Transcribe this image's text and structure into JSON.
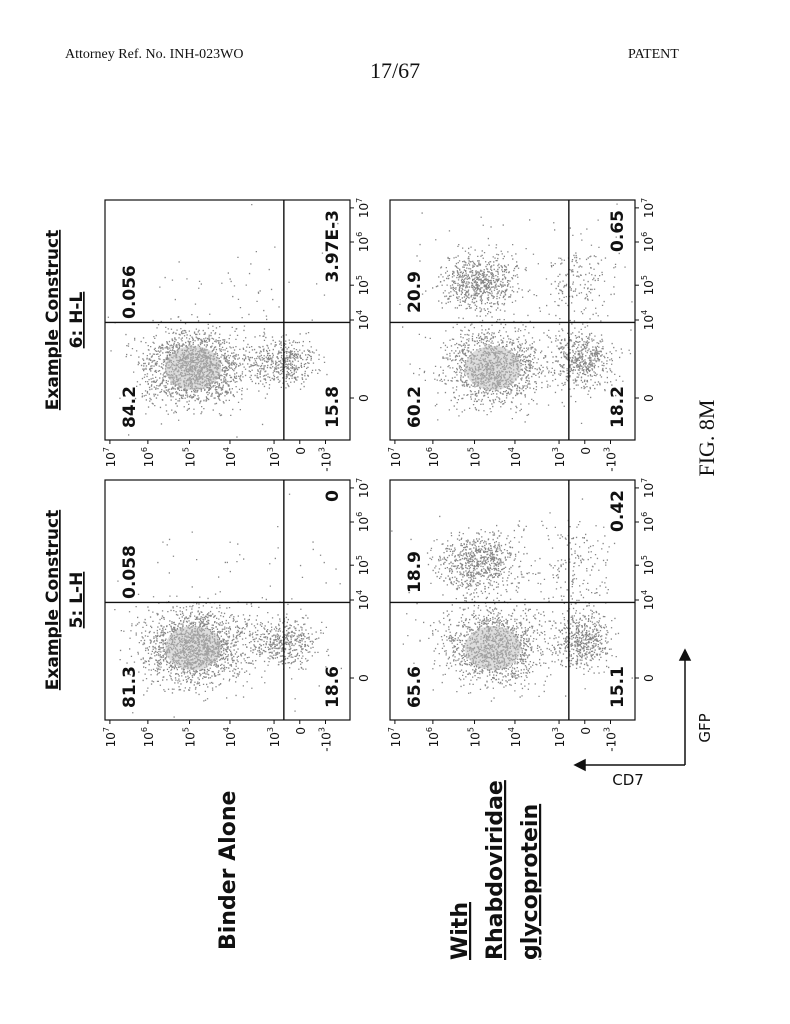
{
  "header": {
    "reference": "Attorney Ref. No. INH-023WO",
    "page_number": "17/67",
    "label": "PATENT"
  },
  "figure": {
    "columns": [
      [
        "Example Construct",
        "5: L-H"
      ],
      [
        "Example Construct",
        "6: H-L"
      ]
    ],
    "rows": [
      [
        "Binder Alone"
      ],
      [
        "With",
        "Rhabdoviridae",
        "glycoprotein"
      ]
    ],
    "panels": [
      [
        {
          "upper_left": "81.3",
          "upper_right": "0.058",
          "lower_right": "0",
          "lower_left": "18.6"
        },
        {
          "upper_left": "84.2",
          "upper_right": "0.056",
          "lower_right": "3.97E-3",
          "lower_left": "15.8"
        }
      ],
      [
        {
          "upper_left": "65.6",
          "upper_right": "18.9",
          "lower_right": "0.42",
          "lower_left": "15.1"
        },
        {
          "upper_left": "60.2",
          "upper_right": "20.9",
          "lower_right": "0.65",
          "lower_left": "18.2"
        }
      ]
    ],
    "y_ticks": [
      {
        "base": "10",
        "exp": "7"
      },
      {
        "base": "10",
        "exp": "6"
      },
      {
        "base": "10",
        "exp": "5"
      },
      {
        "base": "10",
        "exp": "4"
      },
      {
        "base": "10",
        "exp": "3"
      },
      {
        "base": "0"
      },
      {
        "base": "-10",
        "exp": "3"
      }
    ],
    "x_ticks": [
      {
        "base": "0"
      },
      {
        "base": "10",
        "exp": "4"
      },
      {
        "base": "10",
        "exp": "5"
      },
      {
        "base": "10",
        "exp": "6"
      },
      {
        "base": "10",
        "exp": "7"
      }
    ],
    "x_axis_label": "GFP",
    "y_axis_label": "CD7",
    "caption": "FIG. 8M"
  }
}
